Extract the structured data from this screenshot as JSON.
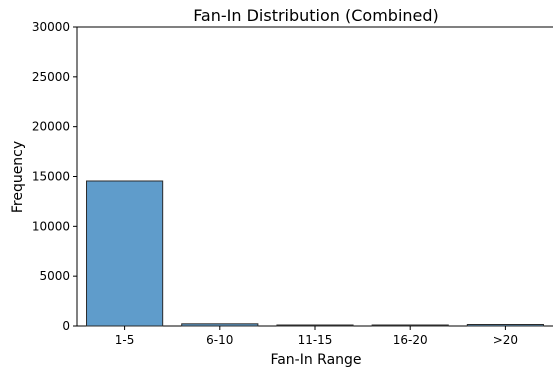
{
  "chart_data": {
    "type": "bar",
    "title": "Fan-In Distribution (Combined)",
    "xlabel": "Fan-In Range",
    "ylabel": "Frequency",
    "categories": [
      "1-5",
      "6-10",
      "11-15",
      "16-20",
      ">20"
    ],
    "values": [
      14550,
      220,
      60,
      40,
      150
    ],
    "ylim": [
      0,
      30000
    ],
    "yticks": [
      0,
      5000,
      10000,
      15000,
      20000,
      25000,
      30000
    ],
    "grid": false,
    "legend": "none",
    "bar_color": "#5f9ccb",
    "edge_color": "#2b2b2b"
  }
}
